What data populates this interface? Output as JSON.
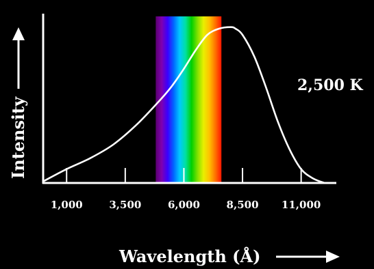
{
  "chart_data": {
    "type": "line",
    "title": "",
    "xlabel": "Wavelength (Å)",
    "ylabel": "Intensity",
    "x_ticks": [
      1000,
      3500,
      6000,
      8500,
      11000
    ],
    "x_tick_labels": [
      "1,000",
      "3,500",
      "6,000",
      "8,500",
      "11,000"
    ],
    "xlim": [
      0,
      12500
    ],
    "ylim": [
      0,
      1
    ],
    "grid": false,
    "series": [
      {
        "name": "2,500 K",
        "x": [
          0,
          1000,
          2000,
          3000,
          4000,
          5000,
          5500,
          6000,
          6500,
          7000,
          7500,
          8000,
          8200,
          8500,
          9000,
          9500,
          10000,
          10500,
          11000,
          11500,
          12000
        ],
        "y": [
          0.01,
          0.09,
          0.16,
          0.25,
          0.38,
          0.54,
          0.63,
          0.74,
          0.86,
          0.96,
          1.0,
          1.01,
          1.0,
          0.96,
          0.82,
          0.62,
          0.4,
          0.22,
          0.09,
          0.03,
          0.0
        ],
        "color": "#ffffff"
      }
    ],
    "visible_spectrum_band": {
      "x_start": 4800,
      "x_end": 7600,
      "colors": [
        "#5a0070",
        "#8000b0",
        "#3a00ff",
        "#0066ff",
        "#00c8ff",
        "#00e0a0",
        "#00d000",
        "#80e000",
        "#e8f000",
        "#ffc000",
        "#ff7000",
        "#ff1500"
      ]
    },
    "annotations": [
      {
        "text": "2,500 K",
        "color": "#ffffff"
      }
    ]
  }
}
